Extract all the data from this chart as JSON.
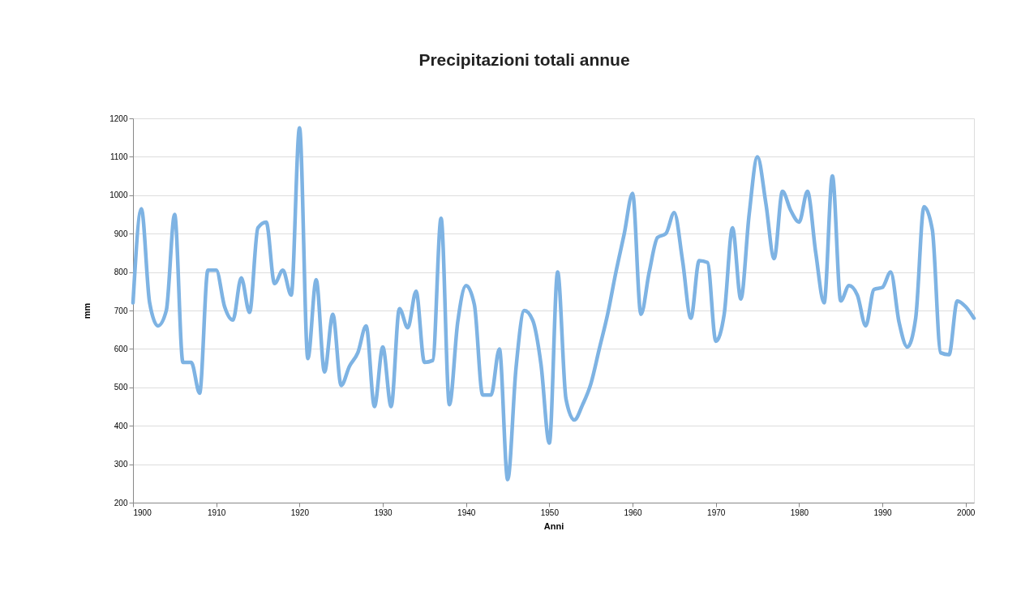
{
  "chart_data": {
    "type": "line",
    "title": "Precipitazioni totali annue",
    "xlabel": "Anni",
    "ylabel": "mm",
    "x": [
      1900,
      1901,
      1902,
      1903,
      1904,
      1905,
      1906,
      1907,
      1908,
      1909,
      1910,
      1911,
      1912,
      1913,
      1914,
      1915,
      1916,
      1917,
      1918,
      1919,
      1920,
      1921,
      1922,
      1923,
      1924,
      1925,
      1926,
      1927,
      1928,
      1929,
      1930,
      1931,
      1932,
      1933,
      1934,
      1935,
      1936,
      1937,
      1938,
      1939,
      1940,
      1941,
      1942,
      1943,
      1944,
      1945,
      1946,
      1947,
      1948,
      1949,
      1950,
      1951,
      1952,
      1953,
      1954,
      1955,
      1956,
      1957,
      1958,
      1959,
      1960,
      1961,
      1962,
      1963,
      1964,
      1965,
      1966,
      1967,
      1968,
      1969,
      1970,
      1971,
      1972,
      1973,
      1974,
      1975,
      1976,
      1977,
      1978,
      1979,
      1980,
      1981,
      1982,
      1983,
      1984,
      1985,
      1986,
      1987,
      1988,
      1989,
      1990,
      1991,
      1992,
      1993,
      1994,
      1995,
      1996,
      1997,
      1998,
      1999,
      2000,
      2001
    ],
    "series": [
      {
        "color": "#7eb3e3",
        "values": [
          720,
          965,
          720,
          660,
          700,
          950,
          565,
          565,
          485,
          805,
          805,
          710,
          675,
          785,
          695,
          915,
          930,
          770,
          805,
          740,
          1175,
          575,
          780,
          540,
          690,
          505,
          555,
          590,
          660,
          450,
          605,
          450,
          705,
          655,
          750,
          565,
          570,
          940,
          455,
          670,
          765,
          715,
          480,
          480,
          600,
          260,
          550,
          700,
          675,
          560,
          355,
          800,
          470,
          415,
          455,
          510,
          600,
          690,
          800,
          900,
          1005,
          690,
          800,
          890,
          900,
          955,
          830,
          680,
          830,
          825,
          620,
          690,
          915,
          730,
          950,
          1100,
          980,
          835,
          1010,
          960,
          930,
          1010,
          850,
          720,
          1050,
          725,
          765,
          740,
          660,
          755,
          760,
          800,
          670,
          605,
          680,
          970,
          910,
          590,
          585,
          725,
          710,
          680
        ]
      }
    ],
    "xlim": [
      1900,
      2001
    ],
    "xticks": [
      1900,
      1910,
      1920,
      1930,
      1940,
      1950,
      1960,
      1970,
      1980,
      1990,
      2000
    ],
    "ylim": [
      200,
      1200
    ],
    "yticks": [
      200,
      300,
      400,
      500,
      600,
      700,
      800,
      900,
      1000,
      1100,
      1200
    ],
    "grid": "y",
    "line_style": "solid"
  }
}
